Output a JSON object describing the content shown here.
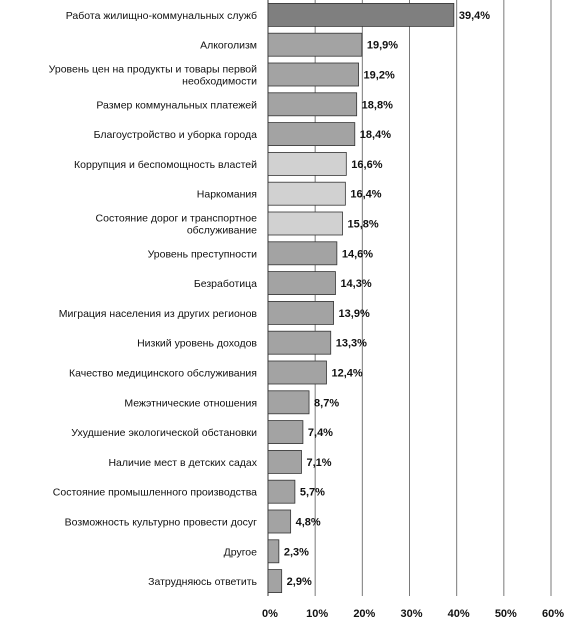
{
  "chart_data": {
    "type": "bar",
    "orientation": "horizontal",
    "title": "",
    "xlabel": "",
    "ylabel": "",
    "xlim": [
      0,
      60
    ],
    "ticks": [
      "0%",
      "10%",
      "20%",
      "30%",
      "40%",
      "50%",
      "60%"
    ],
    "grid": true,
    "legend": "none",
    "categories": [
      "Работа жилищно-коммунальных служб",
      "Алкоголизм",
      "Уровень цен на продукты и товары первой необходимости",
      "Размер коммунальных платежей",
      "Благоустройство и уборка города",
      "Коррупция и беспомощность властей",
      "Наркомания",
      "Состояние дорог и транспортное обслуживание",
      "Уровень преступности",
      "Безработица",
      "Миграция населения из других регионов",
      "Низкий уровень доходов",
      "Качество медицинского обслуживания",
      "Межэтнические отношения",
      "Ухудшение экологической обстановки",
      "Наличие мест в детских садах",
      "Состояние промышленного производства",
      "Возможность культурно провести досуг",
      "Другое",
      "Затрудняюсь ответить"
    ],
    "values": [
      39.4,
      19.9,
      19.2,
      18.8,
      18.4,
      16.6,
      16.4,
      15.8,
      14.6,
      14.3,
      13.9,
      13.3,
      12.4,
      8.7,
      7.4,
      7.1,
      5.7,
      4.8,
      2.3,
      2.9
    ],
    "value_labels": [
      "39,4%",
      "19,9%",
      "19,2%",
      "18,8%",
      "18,4%",
      "16,6%",
      "16,4%",
      "15,8%",
      "14,6%",
      "14,3%",
      "13,9%",
      "13,3%",
      "12,4%",
      "8,7%",
      "7,4%",
      "7,1%",
      "5,7%",
      "4,8%",
      "2,3%",
      "2,9%"
    ],
    "bar_colors": [
      "#a3a3a3",
      "#a3a3a3",
      "#a3a3a3",
      "#a3a3a3",
      "#a3a3a3",
      "#d1d1d1",
      "#d1d1d1",
      "#d1d1d1",
      "#a3a3a3",
      "#a3a3a3",
      "#a3a3a3",
      "#a3a3a3",
      "#a3a3a3",
      "#a3a3a3",
      "#a3a3a3",
      "#a3a3a3",
      "#a3a3a3",
      "#a3a3a3",
      "#a3a3a3",
      "#a3a3a3"
    ],
    "top_bar_color": "#7f7f7f",
    "bar_edge_color": "#333333",
    "grid_color": "#7a7a7a"
  }
}
